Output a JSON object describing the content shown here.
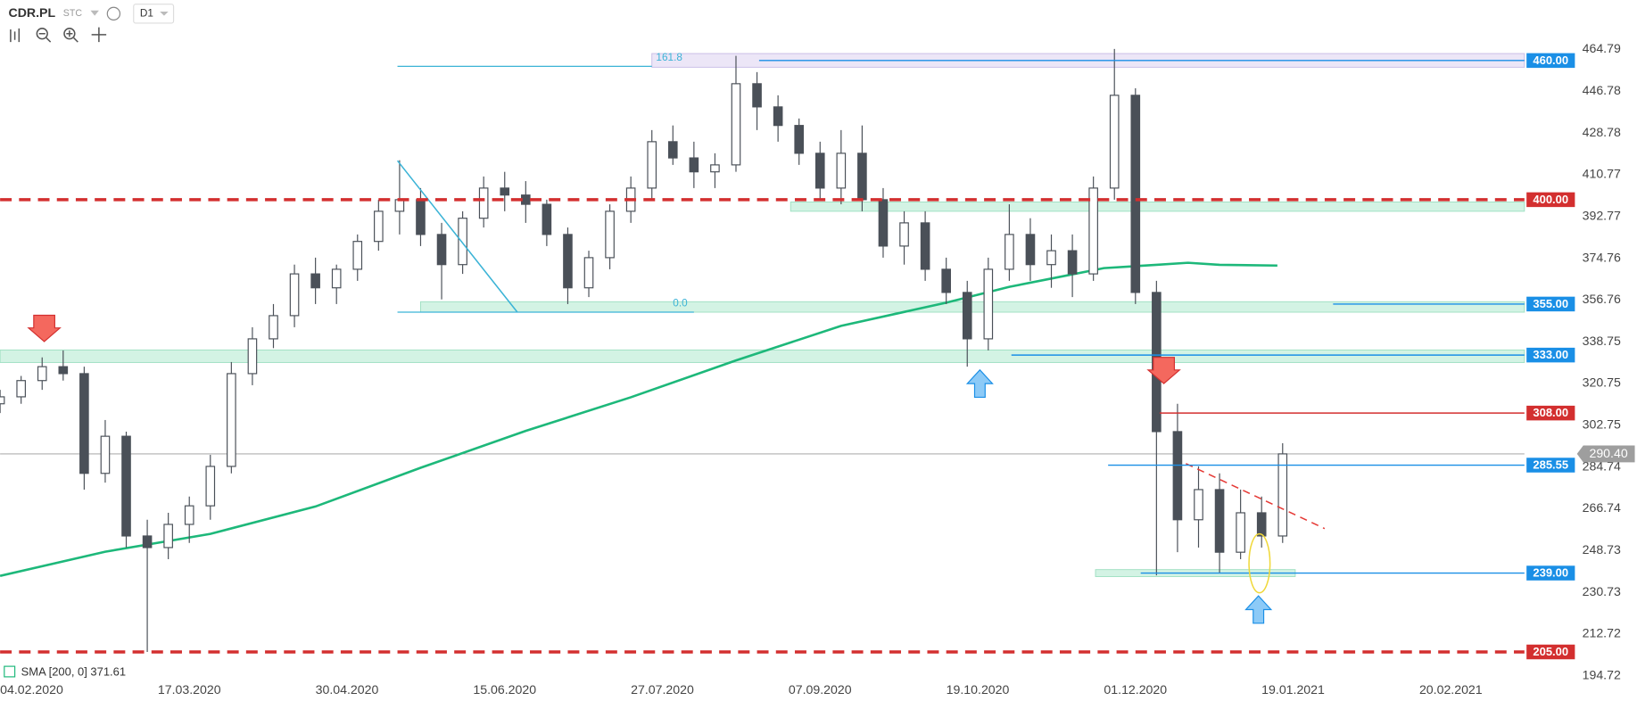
{
  "header": {
    "symbol": "CDR.PL",
    "source": "STC",
    "interval": "D1"
  },
  "chart_data": {
    "type": "candlestick",
    "x": [
      0,
      4,
      8,
      12,
      16,
      20,
      24,
      28,
      32,
      36,
      40,
      44,
      48,
      52,
      56,
      60,
      64,
      68,
      72,
      76,
      80,
      84,
      88,
      92,
      96,
      100,
      104,
      108,
      112,
      116,
      120,
      124,
      128,
      132,
      136,
      140,
      144,
      148,
      152,
      156,
      160,
      164,
      168,
      172,
      176,
      180,
      184,
      188,
      192,
      196,
      200,
      204,
      208,
      212,
      216,
      220,
      224,
      228,
      232,
      236,
      240,
      244
    ],
    "open": [
      312,
      315,
      322,
      328,
      325,
      282,
      298,
      255,
      250,
      260,
      268,
      285,
      325,
      340,
      350,
      368,
      362,
      370,
      382,
      395,
      400,
      385,
      372,
      392,
      405,
      402,
      398,
      385,
      362,
      375,
      395,
      405,
      425,
      418,
      412,
      415,
      450,
      440,
      432,
      420,
      405,
      420,
      400,
      380,
      390,
      370,
      360,
      340,
      370,
      385,
      372,
      378,
      368,
      405,
      445,
      360,
      300,
      262,
      275,
      248,
      265,
      255
    ],
    "high": [
      318,
      324,
      332,
      335,
      328,
      305,
      300,
      262,
      265,
      272,
      290,
      330,
      345,
      355,
      372,
      375,
      372,
      385,
      400,
      417,
      405,
      390,
      395,
      410,
      412,
      408,
      400,
      388,
      378,
      398,
      410,
      430,
      432,
      425,
      420,
      462,
      455,
      445,
      435,
      425,
      430,
      432,
      405,
      395,
      395,
      375,
      365,
      375,
      398,
      392,
      385,
      385,
      410,
      465,
      448,
      365,
      312,
      285,
      282,
      275,
      272,
      295
    ],
    "low": [
      308,
      312,
      318,
      322,
      275,
      278,
      250,
      205,
      245,
      252,
      262,
      282,
      320,
      336,
      345,
      355,
      355,
      365,
      378,
      385,
      380,
      357,
      368,
      388,
      395,
      390,
      380,
      355,
      358,
      370,
      390,
      400,
      415,
      405,
      405,
      412,
      430,
      425,
      415,
      400,
      398,
      395,
      375,
      372,
      365,
      355,
      328,
      335,
      365,
      365,
      362,
      358,
      365,
      400,
      355,
      238,
      248,
      250,
      239,
      245,
      250,
      252
    ],
    "close": [
      315,
      322,
      328,
      325,
      282,
      298,
      255,
      250,
      260,
      268,
      285,
      325,
      340,
      350,
      368,
      362,
      370,
      382,
      395,
      400,
      385,
      372,
      392,
      405,
      402,
      398,
      385,
      362,
      375,
      395,
      405,
      425,
      418,
      412,
      415,
      450,
      440,
      432,
      420,
      405,
      420,
      400,
      380,
      390,
      370,
      360,
      340,
      370,
      385,
      372,
      378,
      368,
      405,
      445,
      360,
      300,
      262,
      275,
      248,
      265,
      255,
      290.4
    ],
    "up_color": "#ffffff",
    "down_color": "#4a5058",
    "wick_color": "#4a5058",
    "overlays": [
      {
        "name": "SMA [200, 0] 371.61",
        "color": "#1db87a",
        "x": [
          0,
          20,
          40,
          60,
          80,
          100,
          120,
          140,
          160,
          180,
          192,
          200,
          210,
          220,
          226,
          232,
          243
        ],
        "values": [
          237.8,
          248.2,
          255.9,
          267.7,
          284.4,
          300.3,
          314.8,
          330.7,
          345.6,
          355.6,
          362.4,
          366,
          370.5,
          371.9,
          372.8,
          371.9,
          371.6
        ]
      }
    ],
    "xlim": [
      0,
      290
    ],
    "xticks": [
      {
        "value": 6,
        "label": "04.02.2020"
      },
      {
        "value": 36,
        "label": "17.03.2020"
      },
      {
        "value": 66,
        "label": "30.04.2020"
      },
      {
        "value": 96,
        "label": "15.06.2020"
      },
      {
        "value": 126,
        "label": "27.07.2020"
      },
      {
        "value": 156,
        "label": "07.09.2020"
      },
      {
        "value": 186,
        "label": "19.10.2020"
      },
      {
        "value": 216,
        "label": "01.12.2020"
      },
      {
        "value": 246,
        "label": "19.01.2021"
      },
      {
        "value": 276,
        "label": "20.02.2021"
      }
    ],
    "ylim": [
      183.85,
      486.09
    ],
    "yticks": [
      194.72,
      212.72,
      230.73,
      248.73,
      266.74,
      284.74,
      302.75,
      320.75,
      338.75,
      356.76,
      374.76,
      392.77,
      410.77,
      428.78,
      446.78,
      464.79
    ],
    "levels": [
      {
        "value": 460,
        "label": "460.00",
        "color": "#1a8fe6",
        "x0": 144.4,
        "dashed": false
      },
      {
        "value": 400,
        "label": "400.00",
        "color": "#d32f2f",
        "x0": 0,
        "dashed": true
      },
      {
        "value": 355,
        "label": "355.00",
        "color": "#1a8fe6",
        "x0": 253.6,
        "dashed": false
      },
      {
        "value": 333,
        "label": "333.00",
        "color": "#1a8fe6",
        "x0": 192.4,
        "dashed": false
      },
      {
        "value": 308,
        "label": "308.00",
        "color": "#d32f2f",
        "x0": 220.6,
        "dashed": false
      },
      {
        "value": 285.55,
        "label": "285.55",
        "color": "#1a8fe6",
        "x0": 210.8,
        "dashed": false
      },
      {
        "value": 239,
        "label": "239.00",
        "color": "#1a8fe6",
        "x0": 217,
        "dashed": false
      },
      {
        "value": 205,
        "label": "205.00",
        "color": "#d32f2f",
        "x0": 0,
        "dashed": true
      }
    ],
    "current": {
      "value": 290.4,
      "label": "290.40",
      "color": "#9e9e9e"
    },
    "zones": [
      {
        "ylim": [
          457.1,
          463
        ],
        "xlim": [
          124,
          290
        ],
        "color": "#ece6f7"
      },
      {
        "ylim": [
          395,
          399
        ],
        "xlim": [
          150.4,
          290
        ],
        "color": "#d3f3e4"
      },
      {
        "ylim": [
          351.5,
          356
        ],
        "xlim": [
          80,
          290
        ],
        "color": "#d3f3e4"
      },
      {
        "ylim": [
          329.8,
          335.2
        ],
        "xlim": [
          0,
          290
        ],
        "color": "#d3f3e4"
      },
      {
        "ylim": [
          237.5,
          240.5
        ],
        "xlim": [
          208.4,
          246.4
        ],
        "color": "#d3f3e4"
      }
    ],
    "fib": {
      "x": [
        75.6,
        132
      ],
      "color": "#3bb3d6",
      "levels": [
        {
          "value": 457.5,
          "label": "161.8",
          "x1": 124
        },
        {
          "value": 351.5,
          "label": "0.0",
          "x1": 132
        }
      ]
    },
    "trendlines": [
      {
        "points": [
          [
            75.6,
            416.8
          ],
          [
            98.4,
            351.5
          ]
        ],
        "color": "#3bb3d6",
        "dashed": false
      },
      {
        "points": [
          [
            225.6,
            286.2
          ],
          [
            252,
            258.2
          ]
        ],
        "color": "#e53935",
        "dashed": true
      }
    ]
  }
}
